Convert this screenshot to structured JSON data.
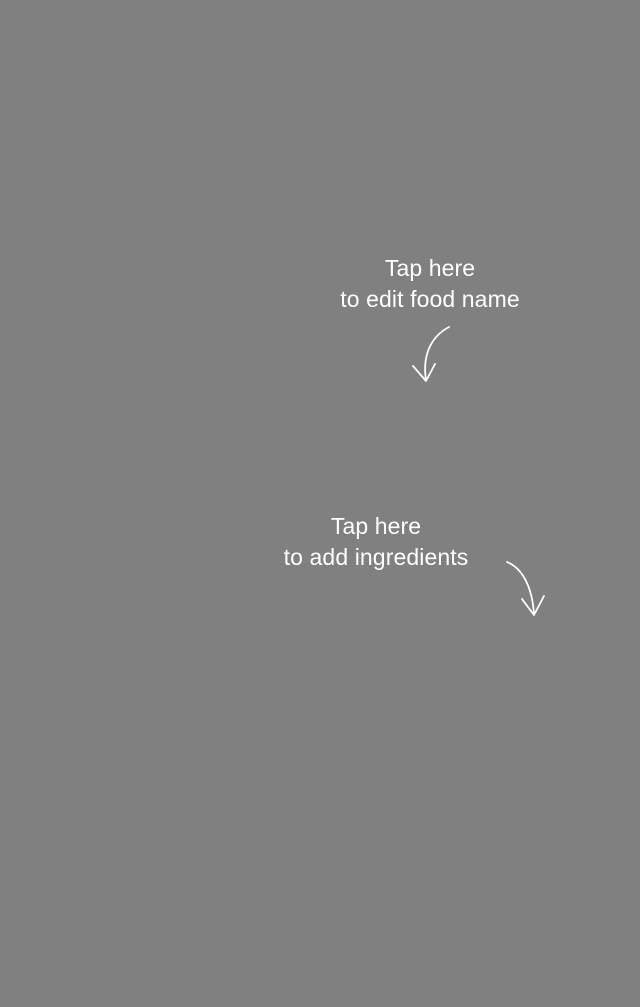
{
  "overlay": {
    "background_color": "#808080",
    "text_color": "#ffffff"
  },
  "hints": {
    "food_name": {
      "line1": "Tap here",
      "line2": "to edit food name",
      "arrow_icon": "curved-arrow-down-left-icon"
    },
    "ingredients": {
      "line1": "Tap here",
      "line2": "to add ingredients",
      "arrow_icon": "curved-arrow-down-right-icon"
    }
  }
}
